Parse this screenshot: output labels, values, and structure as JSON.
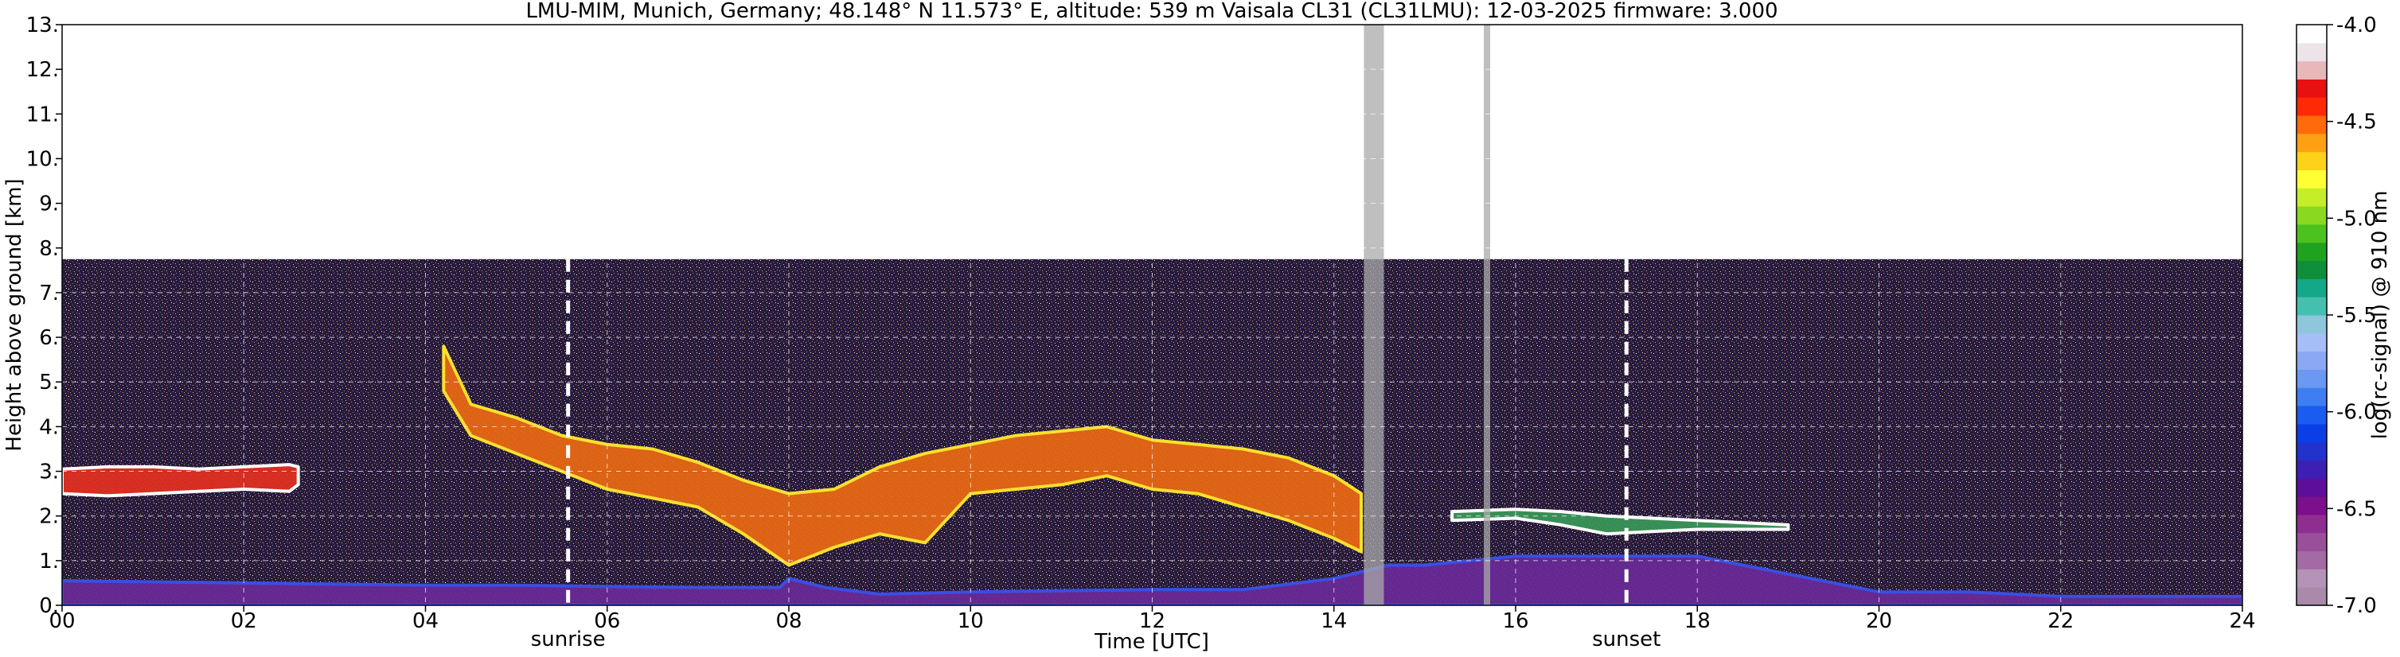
{
  "chart_data": {
    "type": "heatmap",
    "title": "LMU-MIM, Munich, Germany; 48.148° N 11.573° E, altitude: 539 m    Vaisala CL31 (CL31LMU): 12-03-2025    firmware: 3.000",
    "xlabel": "Time [UTC]",
    "ylabel": "Height above ground [km]",
    "xlim": [
      0,
      24
    ],
    "ylim": [
      0,
      13
    ],
    "x_ticks": [
      "00",
      "02",
      "04",
      "06",
      "08",
      "10",
      "12",
      "14",
      "16",
      "18",
      "20",
      "22",
      "24"
    ],
    "y_ticks": [
      "0.",
      "1.",
      "2.",
      "3.",
      "4.",
      "5.",
      "6.",
      "7.",
      "8.",
      "9.",
      "10.",
      "11.",
      "12.",
      "13."
    ],
    "grid": true,
    "signal_max_height_km": 7.75,
    "markers": [
      {
        "label": "sunrise",
        "time_h": 5.57
      },
      {
        "label": "sunset",
        "time_h": 17.22
      }
    ],
    "data_gaps_h": [
      [
        14.33,
        14.55
      ],
      [
        15.65,
        15.72
      ]
    ],
    "colorbar": {
      "label": "log(rc-signal) @ 910 nm",
      "min": -7.0,
      "max": -4.0,
      "ticks": [
        "-4.0",
        "-4.5",
        "-5.0",
        "-5.5",
        "-6.0",
        "-6.5",
        "-7.0"
      ],
      "colors": [
        "#a98aa8",
        "#b593b8",
        "#a46aa5",
        "#9a4f9a",
        "#8e2e8f",
        "#7c0f8b",
        "#5d0f9c",
        "#3e1fb3",
        "#2232cc",
        "#0a3fe6",
        "#1a5cf0",
        "#3f7df2",
        "#6a98f2",
        "#8aa8f4",
        "#a6bdf6",
        "#8ec6dc",
        "#45bfb0",
        "#14a889",
        "#0f8f3a",
        "#1fa31f",
        "#4cc21e",
        "#8ad81f",
        "#c6ee28",
        "#ffff33",
        "#ffd21a",
        "#ffa012",
        "#ff6a0b",
        "#ff2a05",
        "#e81010",
        "#e8b8b8",
        "#ece4e8",
        "#ffffff"
      ]
    },
    "layers": [
      {
        "name": "boundary layer",
        "x": [
          0,
          2,
          4,
          5,
          6,
          7,
          7.9,
          8,
          8.4,
          9,
          10,
          12,
          13,
          14,
          14.6,
          15,
          16,
          17,
          18,
          19,
          20,
          21,
          22,
          23,
          24
        ],
        "top": [
          0.55,
          0.5,
          0.45,
          0.45,
          0.42,
          0.4,
          0.4,
          0.6,
          0.4,
          0.25,
          0.3,
          0.35,
          0.35,
          0.6,
          0.9,
          0.9,
          1.1,
          1.1,
          1.1,
          0.7,
          0.3,
          0.3,
          0.2,
          0.2,
          0.2
        ]
      },
      {
        "name": "residual layer",
        "x": [
          0,
          0.5,
          1,
          1.5,
          2,
          2.5,
          2.6
        ],
        "top": [
          3.05,
          3.1,
          3.1,
          3.05,
          3.1,
          3.15,
          3.1
        ],
        "bottom": [
          2.5,
          2.45,
          2.5,
          2.55,
          2.6,
          2.55,
          2.7
        ]
      },
      {
        "name": "aerosol layer",
        "x": [
          4.2,
          4.5,
          5,
          5.5,
          6,
          6.5,
          7,
          7.5,
          8,
          8.5,
          9,
          9.5,
          10,
          10.5,
          11,
          11.5,
          12,
          12.5,
          13,
          13.5,
          14,
          14.3
        ],
        "top": [
          5.8,
          4.5,
          4.2,
          3.8,
          3.6,
          3.5,
          3.2,
          2.8,
          2.5,
          2.6,
          3.1,
          3.4,
          3.6,
          3.8,
          3.9,
          4.0,
          3.7,
          3.6,
          3.5,
          3.3,
          2.9,
          2.5
        ],
        "bottom": [
          4.8,
          3.8,
          3.4,
          3.0,
          2.6,
          2.4,
          2.2,
          1.6,
          0.9,
          1.3,
          1.6,
          1.4,
          2.5,
          2.6,
          2.7,
          2.9,
          2.6,
          2.5,
          2.2,
          1.9,
          1.5,
          1.2
        ]
      },
      {
        "name": "evening layer",
        "x": [
          15.3,
          16,
          16.5,
          17,
          17.5,
          18,
          18.5,
          19
        ],
        "top": [
          2.1,
          2.15,
          2.1,
          2.0,
          1.95,
          1.9,
          1.85,
          1.8
        ],
        "bottom": [
          1.9,
          1.95,
          1.8,
          1.6,
          1.65,
          1.7,
          1.7,
          1.7
        ]
      }
    ]
  }
}
